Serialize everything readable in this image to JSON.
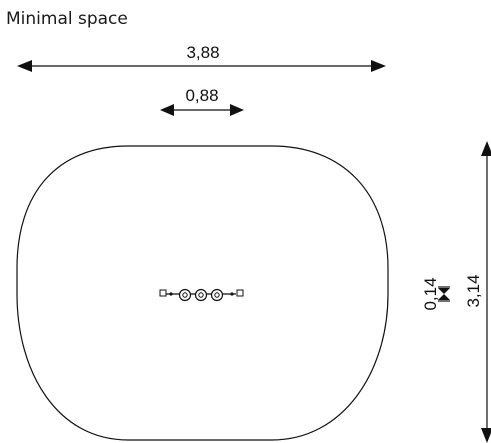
{
  "title": "Minimal space",
  "dimensions": {
    "overall_width": "3,88",
    "equipment_width": "0,88",
    "equipment_depth": "0,14",
    "overall_depth": "3,14"
  },
  "colors": {
    "line": "#111111",
    "background": "#ffffff"
  }
}
